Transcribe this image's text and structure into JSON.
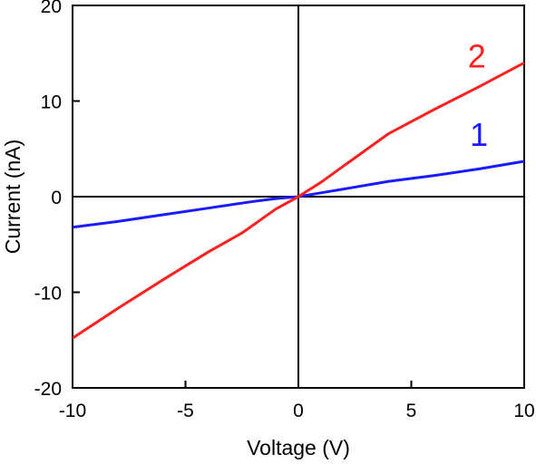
{
  "chart_data": {
    "type": "line",
    "title": "",
    "xlabel": "Voltage (V)",
    "ylabel": "Current (nA)",
    "xlim": [
      -10,
      10
    ],
    "ylim": [
      -20,
      20
    ],
    "xticks": [
      -10,
      -5,
      0,
      5,
      10
    ],
    "yticks": [
      -20,
      -10,
      0,
      10,
      20
    ],
    "xtick_labels": [
      "-10",
      "-5",
      "0",
      "5",
      "10"
    ],
    "ytick_labels": [
      "-20",
      "-10",
      "0",
      "10",
      "20"
    ],
    "zero_lines": true,
    "grid": false,
    "legend": "none",
    "series": [
      {
        "name": "1",
        "color": "#1a1aff",
        "x": [
          -10,
          -8,
          -6,
          -4,
          -2,
          -1,
          0,
          1,
          2,
          4,
          6,
          8,
          10
        ],
        "y": [
          -3.2,
          -2.6,
          -1.9,
          -1.2,
          -0.5,
          -0.2,
          0,
          0.4,
          0.8,
          1.6,
          2.2,
          2.9,
          3.7
        ],
        "label_pos": [
          8.0,
          5.3
        ]
      },
      {
        "name": "2",
        "color": "#ff2020",
        "x": [
          -10,
          -8,
          -6,
          -4,
          -2.5,
          -1,
          0,
          1,
          2,
          4,
          6,
          8,
          10
        ],
        "y": [
          -14.8,
          -11.7,
          -8.7,
          -5.8,
          -3.8,
          -1.3,
          0,
          1.5,
          3.2,
          6.6,
          9.1,
          11.5,
          14.0
        ],
        "label_pos": [
          7.9,
          13.5
        ]
      }
    ]
  }
}
